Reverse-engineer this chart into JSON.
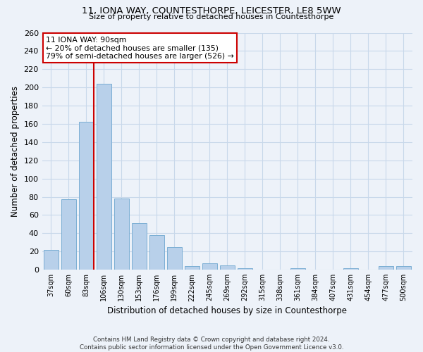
{
  "title": "11, IONA WAY, COUNTESTHORPE, LEICESTER, LE8 5WW",
  "subtitle": "Size of property relative to detached houses in Countesthorpe",
  "xlabel": "Distribution of detached houses by size in Countesthorpe",
  "ylabel": "Number of detached properties",
  "footer_line1": "Contains HM Land Registry data © Crown copyright and database right 2024.",
  "footer_line2": "Contains public sector information licensed under the Open Government Licence v3.0.",
  "bar_labels": [
    "37sqm",
    "60sqm",
    "83sqm",
    "106sqm",
    "130sqm",
    "153sqm",
    "176sqm",
    "199sqm",
    "222sqm",
    "245sqm",
    "269sqm",
    "292sqm",
    "315sqm",
    "338sqm",
    "361sqm",
    "384sqm",
    "407sqm",
    "431sqm",
    "454sqm",
    "477sqm",
    "500sqm"
  ],
  "bar_values": [
    22,
    77,
    162,
    204,
    78,
    51,
    38,
    25,
    4,
    7,
    5,
    2,
    0,
    0,
    2,
    0,
    0,
    2,
    0,
    4,
    4
  ],
  "bar_color": "#b8d0ea",
  "bar_edge_color": "#7baed4",
  "grid_color": "#c8d8ea",
  "background_color": "#edf2f9",
  "vline_x": 2.43,
  "vline_color": "#cc0000",
  "annotation_line1": "11 IONA WAY: 90sqm",
  "annotation_line2": "← 20% of detached houses are smaller (135)",
  "annotation_line3": "79% of semi-detached houses are larger (526) →",
  "annotation_box_color": "#ffffff",
  "annotation_box_edge": "#cc0000",
  "ylim": [
    0,
    260
  ],
  "yticks": [
    0,
    20,
    40,
    60,
    80,
    100,
    120,
    140,
    160,
    180,
    200,
    220,
    240,
    260
  ]
}
